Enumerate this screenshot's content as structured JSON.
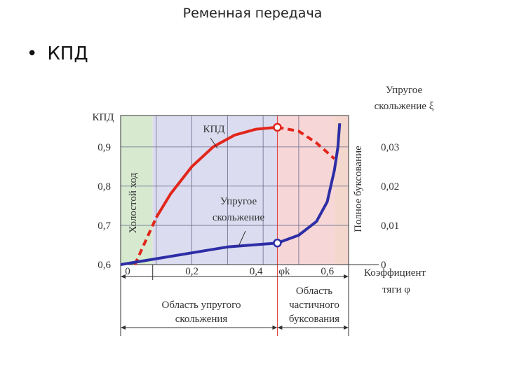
{
  "slide": {
    "title": "Ременная передача",
    "bullet": "КПД"
  },
  "chart_data": {
    "type": "line",
    "xlabel": "Коэффициент тяги φ",
    "ylabel_left": "КПД",
    "ylabel_right": "Упругое скольжение ξ",
    "x_ticks": [
      "0",
      "0,2",
      "0,4",
      "φk",
      "0,6"
    ],
    "y_left_ticks": [
      "0,6",
      "0,7",
      "0,8",
      "0,9"
    ],
    "y_right_ticks": [
      "0",
      "0,01",
      "0,02",
      "0,03"
    ],
    "xlim": [
      0,
      0.64
    ],
    "ylim_left": [
      0.6,
      0.98
    ],
    "ylim_right": [
      0,
      0.038
    ],
    "phi_k": 0.44,
    "regions": [
      {
        "label": "Холостой ход",
        "from": 0,
        "to": 0.09,
        "color": "#d7ead0"
      },
      {
        "label": "Область упругого скольжения",
        "from": 0.09,
        "to": 0.44,
        "color": "#dcdcf0"
      },
      {
        "label": "Область частичного буксования",
        "from": 0.44,
        "to": 0.6,
        "color": "#f6d6d6"
      },
      {
        "label": "Полное буксование",
        "from": 0.6,
        "to": 0.64,
        "color": "#f3d7cc"
      }
    ],
    "series": [
      {
        "name": "КПД",
        "axis": "left",
        "color": "#e2261c",
        "x": [
          0.04,
          0.07,
          0.1,
          0.14,
          0.2,
          0.26,
          0.32,
          0.38,
          0.44,
          0.5,
          0.55,
          0.6
        ],
        "y": [
          0.6,
          0.66,
          0.72,
          0.78,
          0.85,
          0.9,
          0.93,
          0.945,
          0.95,
          0.94,
          0.91,
          0.87
        ]
      },
      {
        "name": "Упругое скольжение",
        "axis": "right",
        "color": "#2d2ea6",
        "x": [
          0,
          0.1,
          0.2,
          0.3,
          0.44,
          0.5,
          0.55,
          0.58,
          0.6,
          0.61,
          0.615
        ],
        "y": [
          0,
          0.0015,
          0.003,
          0.0045,
          0.0055,
          0.0075,
          0.011,
          0.016,
          0.024,
          0.03,
          0.036
        ]
      }
    ],
    "annotations": {
      "kpd_curve_label": "КПД",
      "slip_curve_label_1": "Упругое",
      "slip_curve_label_2": "скольжение",
      "idle_label": "Холостой ход",
      "full_slip_label": "Полное буксование",
      "x_label_line1": "Коэффициент",
      "x_label_line2": "тяги φ",
      "right_label_line1": "Упругое",
      "right_label_line2": "скольжение ξ",
      "region_elastic_line1": "Область упругого",
      "region_elastic_line2": "скольжения",
      "region_partial_line1": "Область",
      "region_partial_line2": "частичного",
      "region_partial_line3": "буксования"
    }
  }
}
